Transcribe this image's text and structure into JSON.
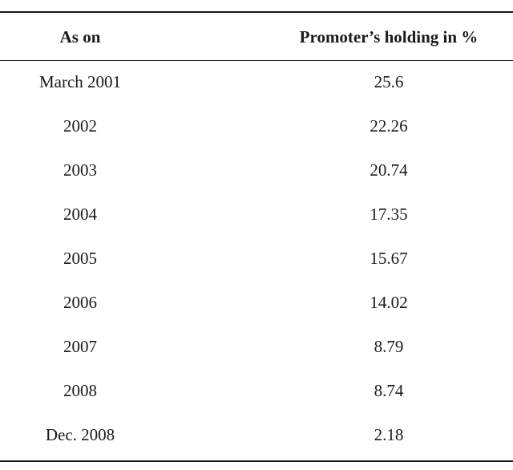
{
  "table": {
    "headers": [
      "As on",
      "Promoter’s holding in %"
    ],
    "rows": [
      [
        "March 2001",
        "25.6"
      ],
      [
        "2002",
        "22.26"
      ],
      [
        "2003",
        "20.74"
      ],
      [
        "2004",
        "17.35"
      ],
      [
        "2005",
        "15.67"
      ],
      [
        "2006",
        "14.02"
      ],
      [
        "2007",
        "8.79"
      ],
      [
        "2008",
        "8.74"
      ],
      [
        "Dec. 2008",
        "2.18"
      ]
    ]
  }
}
